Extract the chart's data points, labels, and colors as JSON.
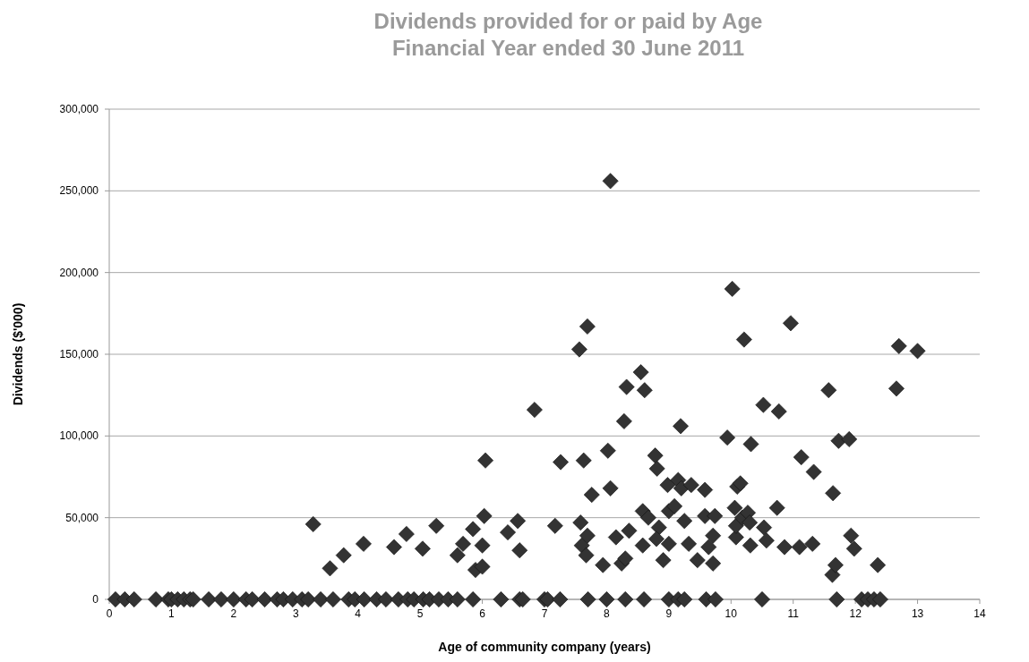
{
  "chart_data": {
    "type": "scatter",
    "title": "Dividends provided for or paid by Age",
    "subtitle": "Financial Year ended 30 June 2011",
    "xlabel": "Age of community company (years)",
    "ylabel": "Dividends ($'000)",
    "marker": "diamond",
    "grid": "y",
    "xlim": [
      0,
      14
    ],
    "xticks": [
      0,
      1,
      2,
      3,
      4,
      5,
      6,
      7,
      8,
      9,
      10,
      11,
      12,
      13,
      14
    ],
    "ylim": [
      0,
      300000
    ],
    "yticks": [
      {
        "value": 0,
        "label": "0"
      },
      {
        "value": 50000,
        "label": "50,000"
      },
      {
        "value": 100000,
        "label": "100,000"
      },
      {
        "value": 150000,
        "label": "150,000"
      },
      {
        "value": 200000,
        "label": "200,000"
      },
      {
        "value": 250000,
        "label": "250,000"
      },
      {
        "value": 300000,
        "label": "300,000"
      }
    ],
    "series": [
      {
        "color": "#333333",
        "x": [
          0.1,
          0.25,
          0.4,
          0.75,
          0.95,
          1.0,
          1.1,
          1.2,
          1.3,
          1.35,
          1.6,
          1.8,
          2.0,
          2.2,
          2.3,
          2.5,
          2.7,
          2.8,
          2.95,
          3.1,
          3.2,
          3.4,
          3.6,
          3.85,
          3.95,
          4.1,
          4.3,
          4.45,
          4.65,
          4.8,
          4.9,
          5.05,
          5.15,
          5.3,
          5.45,
          5.6,
          5.85,
          6.3,
          6.6,
          6.65,
          7.0,
          7.05,
          7.25,
          7.7,
          8.0,
          8.3,
          8.6,
          9.0,
          9.15,
          9.25,
          9.6,
          9.75,
          10.5,
          11.7,
          12.1,
          12.2,
          12.3,
          12.4,
          3.28,
          3.55,
          3.77,
          4.09,
          4.58,
          4.78,
          5.26,
          5.04,
          5.6,
          5.69,
          5.85,
          5.89,
          6.0,
          6.0,
          6.03,
          6.05,
          6.41,
          6.57,
          6.6,
          6.84,
          7.17,
          7.26,
          7.56,
          7.69,
          7.63,
          7.58,
          7.6,
          7.67,
          7.69,
          7.76,
          7.94,
          8.02,
          8.06,
          8.06,
          8.15,
          8.24,
          8.3,
          8.28,
          8.32,
          8.36,
          8.55,
          8.61,
          8.58,
          8.58,
          8.67,
          8.78,
          8.81,
          8.84,
          8.8,
          8.91,
          9.0,
          8.98,
          9.0,
          9.09,
          9.15,
          9.19,
          9.2,
          9.25,
          9.32,
          9.36,
          9.46,
          9.58,
          9.58,
          9.64,
          9.71,
          9.74,
          9.71,
          9.94,
          10.02,
          10.06,
          10.1,
          10.15,
          10.08,
          10.08,
          10.18,
          10.21,
          10.27,
          10.3,
          10.31,
          10.32,
          10.53,
          10.57,
          10.52,
          10.74,
          10.77,
          10.86,
          10.96,
          11.1,
          11.13,
          11.31,
          11.33,
          11.57,
          11.63,
          11.68,
          11.64,
          11.73,
          11.9,
          11.93,
          11.98,
          12.36,
          12.7,
          13.0,
          12.66
        ],
        "values": [
          0,
          0,
          0,
          0,
          0,
          0,
          0,
          0,
          0,
          0,
          0,
          0,
          0,
          0,
          0,
          0,
          0,
          0,
          0,
          0,
          0,
          0,
          0,
          0,
          0,
          0,
          0,
          0,
          0,
          0,
          0,
          0,
          0,
          0,
          0,
          0,
          0,
          0,
          0,
          0,
          0,
          0,
          0,
          0,
          0,
          0,
          0,
          0,
          0,
          0,
          0,
          0,
          0,
          0,
          0,
          0,
          0,
          0,
          46000,
          19000,
          27000,
          34000,
          32000,
          40000,
          45000,
          31000,
          27000,
          34000,
          43000,
          18000,
          33000,
          20000,
          51000,
          85000,
          41000,
          48000,
          30000,
          116000,
          45000,
          84000,
          153000,
          167000,
          85000,
          47000,
          33000,
          27000,
          39000,
          64000,
          21000,
          91000,
          256000,
          68000,
          38000,
          22000,
          25000,
          109000,
          130000,
          42000,
          139000,
          128000,
          54000,
          33000,
          50000,
          88000,
          80000,
          44000,
          37000,
          24000,
          54000,
          70000,
          34000,
          57000,
          73000,
          106000,
          68000,
          48000,
          34000,
          70000,
          24000,
          51000,
          67000,
          32000,
          39000,
          51000,
          22000,
          99000,
          190000,
          56000,
          69000,
          71000,
          38000,
          45000,
          50000,
          159000,
          53000,
          47000,
          33000,
          95000,
          44000,
          36000,
          119000,
          56000,
          115000,
          32000,
          169000,
          32000,
          87000,
          34000,
          78000,
          128000,
          15000,
          21000,
          65000,
          97000,
          98000,
          39000,
          31000,
          21000,
          155000,
          152000,
          129000
        ]
      }
    ]
  }
}
